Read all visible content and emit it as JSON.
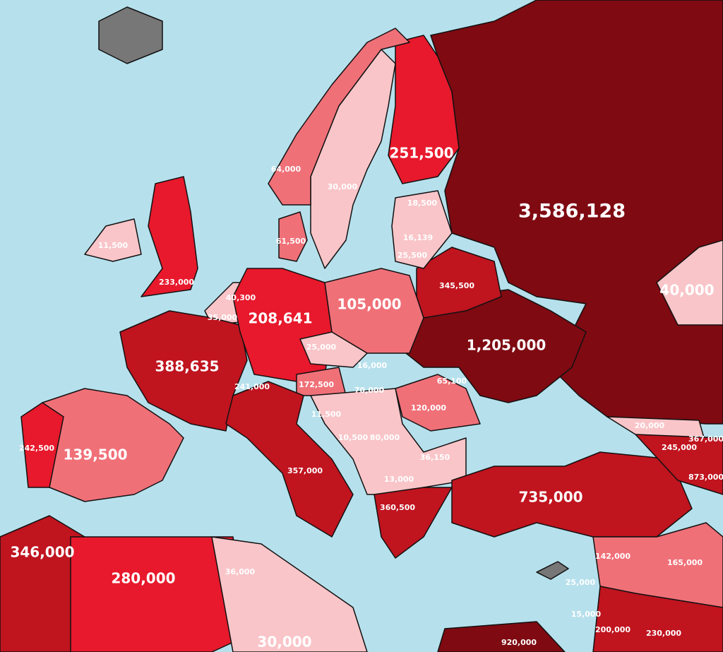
{
  "map": {
    "labels": [
      "3,586,128",
      "1,205,000",
      "735,000",
      "388,635",
      "280,000",
      "346,000",
      "251,500",
      "208,641",
      "139,500",
      "105,000",
      "40,000",
      "30,000",
      "233,000",
      "64,000",
      "30,000",
      "18,500",
      "16,139",
      "25,500",
      "61,500",
      "11,500",
      "345,500",
      "40,300",
      "35,000",
      "25,000",
      "16,000",
      "65,100",
      "241,000",
      "172,500",
      "70,000",
      "120,000",
      "242,500",
      "11,500",
      "10,500",
      "80,000",
      "36,150",
      "20,000",
      "245,000",
      "367,000",
      "357,000",
      "873,000",
      "13,000",
      "360,500",
      "142,000",
      "165,000",
      "36,000",
      "25,000",
      "15,000",
      "200,000",
      "230,000",
      "920,000"
    ]
  }
}
